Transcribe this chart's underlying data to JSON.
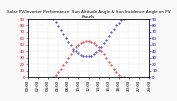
{
  "title": "Solar PV/Inverter Performance  Sun Altitude Angle & Sun Incidence Angle on PV Panels",
  "bg_color": "#f8f8f8",
  "plot_bg": "#ffffff",
  "grid_color": "#bbbbbb",
  "ylim_left": [
    0,
    90
  ],
  "ylim_right": [
    0,
    90
  ],
  "xlim": [
    0,
    24
  ],
  "x_ticks": [
    0,
    2,
    4,
    6,
    8,
    10,
    12,
    14,
    16,
    18,
    20,
    22,
    24
  ],
  "left_yticks": [
    0,
    10,
    20,
    30,
    40,
    50,
    60,
    70,
    80,
    90
  ],
  "right_yticks": [
    0,
    10,
    20,
    30,
    40,
    50,
    60,
    70,
    80,
    90
  ],
  "sun_altitude_color": "#dd0000",
  "sun_incidence_color": "#0000cc",
  "sun_altitude_x": [
    5.0,
    5.5,
    6.0,
    6.5,
    7.0,
    7.5,
    8.0,
    8.5,
    9.0,
    9.5,
    10.0,
    10.5,
    11.0,
    11.5,
    12.0,
    12.5,
    13.0,
    13.5,
    14.0,
    14.5,
    15.0,
    15.5,
    16.0,
    16.5,
    17.0,
    17.5,
    18.0,
    18.5,
    19.0
  ],
  "sun_altitude_y": [
    0,
    3,
    7,
    12,
    18,
    24,
    30,
    36,
    41,
    46,
    50,
    53,
    55,
    56,
    56,
    55,
    53,
    50,
    46,
    41,
    36,
    30,
    24,
    18,
    12,
    7,
    3,
    0,
    0
  ],
  "sun_incidence_x": [
    5.0,
    5.5,
    6.0,
    6.5,
    7.0,
    7.5,
    8.0,
    8.5,
    9.0,
    9.5,
    10.0,
    10.5,
    11.0,
    11.5,
    12.0,
    12.5,
    13.0,
    13.5,
    14.0,
    14.5,
    15.0,
    15.5,
    16.0,
    16.5,
    17.0,
    17.5,
    18.0,
    18.5,
    19.0
  ],
  "sun_incidence_y": [
    90,
    85,
    79,
    73,
    67,
    61,
    55,
    49,
    44,
    40,
    37,
    34,
    33,
    32,
    32,
    33,
    35,
    38,
    42,
    47,
    52,
    58,
    64,
    70,
    75,
    80,
    84,
    88,
    90
  ],
  "title_fontsize": 3.0,
  "tick_fontsize": 2.8,
  "marker_size": 0.8,
  "title_color": "#000000"
}
